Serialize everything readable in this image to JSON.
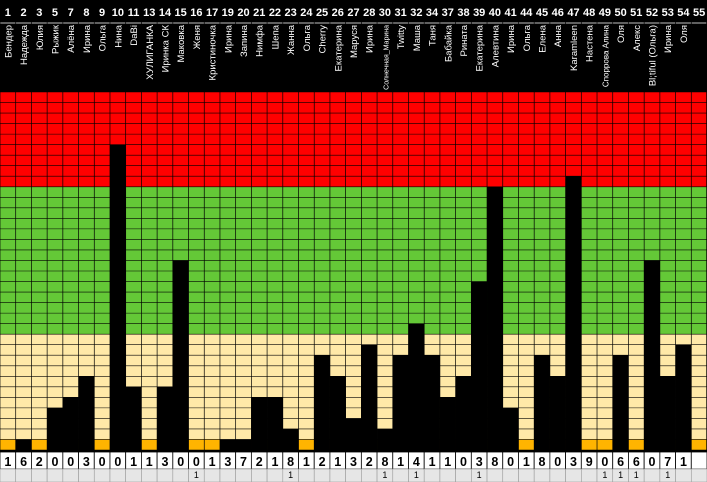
{
  "chart_data": {
    "type": "bar",
    "ylim": [
      0,
      34
    ],
    "grid": true,
    "zones": [
      {
        "from": 0,
        "to": 1,
        "color": "#ffb400"
      },
      {
        "from": 1,
        "to": 11,
        "color": "#ffe9a8"
      },
      {
        "from": 11,
        "to": 25,
        "color": "#64c837"
      },
      {
        "from": 25,
        "to": 34,
        "color": "#ff0000"
      }
    ],
    "bar_color": "#000000",
    "participants": [
      {
        "num": "1",
        "name": "Бендер",
        "value": 0,
        "score": "1",
        "bonus": ""
      },
      {
        "num": "2",
        "name": "Надежда",
        "value": 1,
        "score": "6",
        "bonus": ""
      },
      {
        "num": "3",
        "name": "Юлия",
        "value": 0,
        "score": "2",
        "bonus": ""
      },
      {
        "num": "5",
        "name": "Рыжик",
        "value": 4,
        "score": "0",
        "bonus": ""
      },
      {
        "num": "7",
        "name": "Алёна",
        "value": 5,
        "score": "0",
        "bonus": ""
      },
      {
        "num": "8",
        "name": "Ирина",
        "value": 7,
        "score": "3",
        "bonus": ""
      },
      {
        "num": "9",
        "name": "Ольга",
        "value": 0,
        "score": "0",
        "bonus": ""
      },
      {
        "num": "10",
        "name": "Нина",
        "value": 29,
        "score": "0",
        "bonus": ""
      },
      {
        "num": "11",
        "name": "DaBi",
        "value": 6,
        "score": "1",
        "bonus": ""
      },
      {
        "num": "13",
        "name": "ХУЛИГАНКА",
        "value": 0,
        "score": "1",
        "bonus": ""
      },
      {
        "num": "14",
        "name": "Иринка СК",
        "value": 6,
        "score": "3",
        "bonus": ""
      },
      {
        "num": "15",
        "name": "Маковка",
        "value": 18,
        "score": "0",
        "bonus": ""
      },
      {
        "num": "16",
        "name": "Женя",
        "value": 0,
        "score": "0",
        "bonus": "1"
      },
      {
        "num": "17",
        "name": "Кристиночка",
        "value": 0,
        "score": "1",
        "bonus": ""
      },
      {
        "num": "19",
        "name": "Ирина",
        "value": 1,
        "score": "3",
        "bonus": ""
      },
      {
        "num": "20",
        "name": "Запина",
        "value": 1,
        "score": "7",
        "bonus": ""
      },
      {
        "num": "21",
        "name": "Нимфа",
        "value": 5,
        "score": "2",
        "bonus": ""
      },
      {
        "num": "22",
        "name": "Шепа",
        "value": 5,
        "score": "1",
        "bonus": ""
      },
      {
        "num": "23",
        "name": "Жанна",
        "value": 2,
        "score": "8",
        "bonus": "1"
      },
      {
        "num": "24",
        "name": "Ольга",
        "value": 0,
        "score": "1",
        "bonus": ""
      },
      {
        "num": "25",
        "name": "Cherry",
        "value": 9,
        "score": "2",
        "bonus": ""
      },
      {
        "num": "26",
        "name": "Екатерина",
        "value": 7,
        "score": "1",
        "bonus": ""
      },
      {
        "num": "27",
        "name": "Маруся",
        "value": 3,
        "score": "3",
        "bonus": ""
      },
      {
        "num": "28",
        "name": "Ирина",
        "value": 10,
        "score": "2",
        "bonus": ""
      },
      {
        "num": "30",
        "name": "Солнечная_Марина",
        "value": 2,
        "score": "8",
        "bonus": "1"
      },
      {
        "num": "31",
        "name": "Twitty",
        "value": 9,
        "score": "1",
        "bonus": ""
      },
      {
        "num": "32",
        "name": "Маша",
        "value": 12,
        "score": "4",
        "bonus": "1"
      },
      {
        "num": "34",
        "name": "Таня",
        "value": 9,
        "score": "1",
        "bonus": ""
      },
      {
        "num": "37",
        "name": "Бабайка",
        "value": 5,
        "score": "1",
        "bonus": ""
      },
      {
        "num": "38",
        "name": "Рината",
        "value": 7,
        "score": "0",
        "bonus": ""
      },
      {
        "num": "39",
        "name": "Екатерина",
        "value": 16,
        "score": "3",
        "bonus": "1"
      },
      {
        "num": "40",
        "name": "Алевтина",
        "value": 25,
        "score": "8",
        "bonus": ""
      },
      {
        "num": "41",
        "name": "Ирина",
        "value": 4,
        "score": "0",
        "bonus": ""
      },
      {
        "num": "44",
        "name": "Ольга",
        "value": 0,
        "score": "1",
        "bonus": ""
      },
      {
        "num": "45",
        "name": "Елена",
        "value": 9,
        "score": "8",
        "bonus": ""
      },
      {
        "num": "46",
        "name": "Анна",
        "value": 7,
        "score": "0",
        "bonus": ""
      },
      {
        "num": "47",
        "name": "Karamleen",
        "value": 26,
        "score": "3",
        "bonus": ""
      },
      {
        "num": "48",
        "name": "Настена",
        "value": 0,
        "score": "9",
        "bonus": ""
      },
      {
        "num": "49",
        "name": "Споррова Алина",
        "value": 0,
        "score": "0",
        "bonus": "1"
      },
      {
        "num": "50",
        "name": "Оля",
        "value": 9,
        "score": "6",
        "bonus": "1"
      },
      {
        "num": "51",
        "name": "Алекс",
        "value": 0,
        "score": "6",
        "bonus": "1"
      },
      {
        "num": "52",
        "name": "Bl;tiful (Ольга)",
        "value": 18,
        "score": "0",
        "bonus": ""
      },
      {
        "num": "53",
        "name": "Ирина",
        "value": 7,
        "score": "7",
        "bonus": "1"
      },
      {
        "num": "54",
        "name": "Оля",
        "value": 10,
        "score": "1",
        "bonus": ""
      },
      {
        "num": "55",
        "name": "",
        "value": 0,
        "score": "",
        "bonus": ""
      }
    ]
  }
}
